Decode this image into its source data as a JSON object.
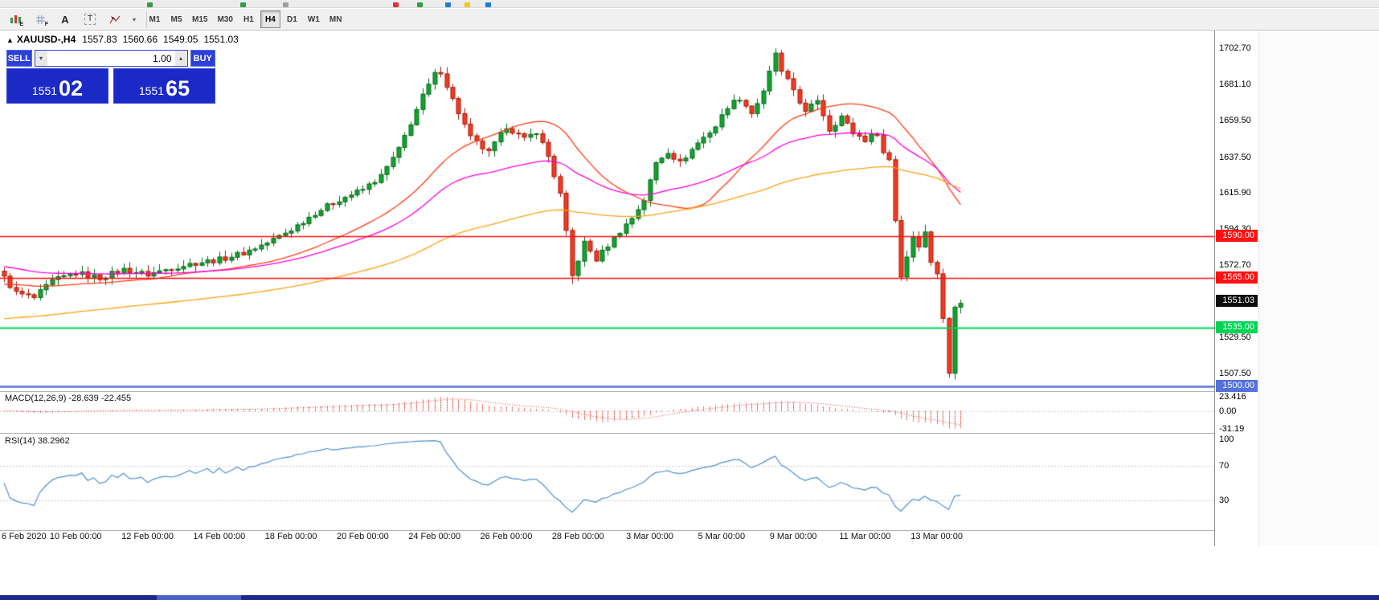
{
  "icons": {
    "marker": "▲",
    "caret_down": "▾",
    "caret_up": "▴"
  },
  "toolbar": {
    "tools": [
      {
        "name": "expert-chart-icon",
        "letter": "E"
      },
      {
        "name": "grid-icon",
        "letter": "F"
      },
      {
        "name": "text-annotation-icon",
        "letter": "A"
      },
      {
        "name": "textbox-icon",
        "letter": "T"
      },
      {
        "name": "drawing-tools-icon",
        "letter": ""
      }
    ],
    "timeframes": [
      {
        "label": "M1",
        "active": false
      },
      {
        "label": "M5",
        "active": false
      },
      {
        "label": "M15",
        "active": false
      },
      {
        "label": "M30",
        "active": false
      },
      {
        "label": "H1",
        "active": false
      },
      {
        "label": "H4",
        "active": true
      },
      {
        "label": "D1",
        "active": false
      },
      {
        "label": "W1",
        "active": false
      },
      {
        "label": "MN",
        "active": false
      }
    ]
  },
  "chart": {
    "header": {
      "marker": "▲",
      "symbol": "XAUUSD-,H4",
      "open": "1557.83",
      "high": "1560.66",
      "low": "1549.05",
      "close": "1551.03"
    },
    "trade_panel": {
      "sell_label": "SELL",
      "buy_label": "BUY",
      "volume": "1.00",
      "bid": {
        "main": "1551",
        "pips": "02"
      },
      "ask": {
        "main": "1551",
        "pips": "65"
      }
    },
    "price_axis": {
      "ticks": [
        {
          "label": "1702.70",
          "value": 1702.7
        },
        {
          "label": "1681.10",
          "value": 1681.1
        },
        {
          "label": "1659.50",
          "value": 1659.5
        },
        {
          "label": "1637.50",
          "value": 1637.5
        },
        {
          "label": "1615.90",
          "value": 1615.9
        },
        {
          "label": "1594.30",
          "value": 1594.3
        },
        {
          "label": "1572.70",
          "value": 1572.7
        },
        {
          "label": "1529.50",
          "value": 1529.5
        },
        {
          "label": "1507.50",
          "value": 1507.5
        }
      ],
      "current": {
        "label": "1551.03",
        "value": 1551.03,
        "bg": "#0d0d0d"
      }
    },
    "levels": [
      {
        "label": "1590.00",
        "value": 1590,
        "color": "#ff1010",
        "width": 1.6
      },
      {
        "label": "1565.00",
        "value": 1565,
        "color": "#ff1010",
        "width": 1.6
      },
      {
        "label": "1535.00",
        "value": 1535,
        "color": "#00d455",
        "width": 2
      },
      {
        "label": "1500.00",
        "value": 1500,
        "color": "#5572d9",
        "width": 2.5
      }
    ],
    "time_axis": [
      {
        "label": "6 Feb 2020",
        "idx": 0
      },
      {
        "label": "10 Feb 00:00",
        "idx": 12
      },
      {
        "label": "12 Feb 00:00",
        "idx": 24
      },
      {
        "label": "14 Feb 00:00",
        "idx": 36
      },
      {
        "label": "18 Feb 00:00",
        "idx": 48
      },
      {
        "label": "20 Feb 00:00",
        "idx": 60
      },
      {
        "label": "24 Feb 00:00",
        "idx": 72
      },
      {
        "label": "26 Feb 00:00",
        "idx": 84
      },
      {
        "label": "28 Feb 00:00",
        "idx": 96
      },
      {
        "label": "3 Mar 00:00",
        "idx": 108
      },
      {
        "label": "5 Mar 00:00",
        "idx": 120
      },
      {
        "label": "9 Mar 00:00",
        "idx": 132
      },
      {
        "label": "11 Mar 00:00",
        "idx": 144
      },
      {
        "label": "13 Mar 00:00",
        "idx": 156
      }
    ]
  },
  "macd": {
    "title": "MACD(12,26,9)",
    "values": "-28.639 -22.455",
    "params": {
      "fast": 12,
      "slow": 26,
      "signal": 9
    },
    "ticks": [
      {
        "label": "23.416",
        "value": 23.416
      },
      {
        "label": "0.00",
        "value": 0
      },
      {
        "label": "-31.19",
        "value": -31.19
      }
    ],
    "color_histogram": "#e23b2c",
    "color_signal": "#d93a2b"
  },
  "rsi": {
    "title": "RSI(14)",
    "value": "38.2962",
    "period": 14,
    "ticks": [
      {
        "label": "100",
        "value": 100
      },
      {
        "label": "70",
        "value": 70
      },
      {
        "label": "30",
        "value": 30
      }
    ],
    "levels": [
      70,
      30
    ],
    "color": "#4f8fd0"
  },
  "chart_data": {
    "type": "candlestick",
    "symbol": "XAUUSD-",
    "timeframe": "H4",
    "candle_count": 161,
    "y_range": [
      1497.5,
      1712
    ],
    "close_anchors": [
      [
        0,
        1565
      ],
      [
        2,
        1556
      ],
      [
        5,
        1553
      ],
      [
        8,
        1563
      ],
      [
        12,
        1568
      ],
      [
        16,
        1565
      ],
      [
        20,
        1570
      ],
      [
        24,
        1567
      ],
      [
        28,
        1571
      ],
      [
        32,
        1574
      ],
      [
        36,
        1576
      ],
      [
        40,
        1580
      ],
      [
        44,
        1586
      ],
      [
        48,
        1594
      ],
      [
        52,
        1604
      ],
      [
        56,
        1612
      ],
      [
        60,
        1618
      ],
      [
        63,
        1626
      ],
      [
        66,
        1642
      ],
      [
        68,
        1658
      ],
      [
        70,
        1674
      ],
      [
        72,
        1687
      ],
      [
        73,
        1689
      ],
      [
        75,
        1672
      ],
      [
        78,
        1649
      ],
      [
        81,
        1640
      ],
      [
        84,
        1656
      ],
      [
        87,
        1648
      ],
      [
        89,
        1653
      ],
      [
        91,
        1638
      ],
      [
        93,
        1615
      ],
      [
        94,
        1592
      ],
      [
        95,
        1566
      ],
      [
        97,
        1586
      ],
      [
        99,
        1576
      ],
      [
        102,
        1589
      ],
      [
        105,
        1601
      ],
      [
        107,
        1612
      ],
      [
        109,
        1634
      ],
      [
        111,
        1641
      ],
      [
        113,
        1634
      ],
      [
        116,
        1646
      ],
      [
        119,
        1656
      ],
      [
        121,
        1668
      ],
      [
        123,
        1673
      ],
      [
        125,
        1664
      ],
      [
        127,
        1676
      ],
      [
        129,
        1700
      ],
      [
        130,
        1688
      ],
      [
        132,
        1678
      ],
      [
        134,
        1664
      ],
      [
        136,
        1672
      ],
      [
        138,
        1654
      ],
      [
        140,
        1662
      ],
      [
        142,
        1652
      ],
      [
        144,
        1648
      ],
      [
        146,
        1652
      ],
      [
        147,
        1640
      ],
      [
        148,
        1636
      ],
      [
        149,
        1600
      ],
      [
        150,
        1566
      ],
      [
        151,
        1578
      ],
      [
        152,
        1590
      ],
      [
        153,
        1585
      ],
      [
        154,
        1592
      ],
      [
        155,
        1575
      ],
      [
        156,
        1568
      ],
      [
        157,
        1540
      ],
      [
        158,
        1508
      ],
      [
        159,
        1549
      ],
      [
        160,
        1551
      ]
    ],
    "wick_overrides": [
      {
        "i": 72,
        "high": 1689.5
      },
      {
        "i": 73,
        "high": 1691
      },
      {
        "i": 95,
        "low": 1561.2
      },
      {
        "i": 129,
        "high": 1702.7
      },
      {
        "i": 154,
        "high": 1597
      },
      {
        "i": 158,
        "low": 1505.1
      }
    ],
    "colors": {
      "up": "#10a42f",
      "up_edge": "#086b1d",
      "down": "#f43b1e",
      "down_edge": "#a8170b"
    },
    "moving_averages": [
      {
        "name": "fast",
        "type": "sma",
        "period": 24,
        "init": 1561,
        "color": "#ff3d17"
      },
      {
        "name": "mid",
        "type": "ema",
        "period": 48,
        "init": 1572,
        "color": "#ff00e0"
      },
      {
        "name": "slow",
        "type": "ema",
        "period": 110,
        "init": 1540,
        "color": "#ffa216"
      }
    ]
  }
}
